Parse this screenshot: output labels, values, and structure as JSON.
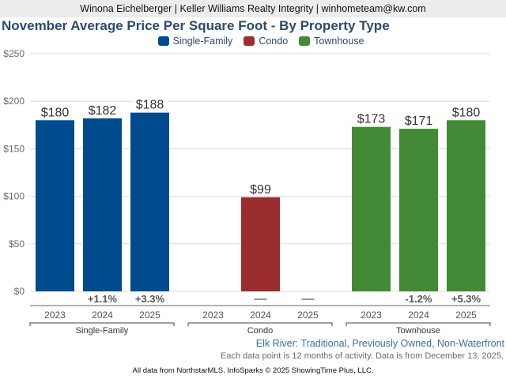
{
  "header": {
    "agent_line": "Winona Eichelberger | Keller Williams Realty Integrity | winhometeam@kw.com"
  },
  "footer": {
    "subtitle": "Elk River: Traditional, Previously Owned, Non-Waterfront",
    "note": "Each data point is 12 months of activity. Data is from December 13, 2025.",
    "source": "All data from NorthstarMLS. InfoSparks © 2025 ShowingTime Plus, LLC."
  },
  "chart_data": {
    "type": "bar",
    "title": "November Average Price Per Square Foot - By Property Type",
    "xlabel": "",
    "ylabel": "",
    "ylim": [
      0,
      250
    ],
    "yticks": [
      0,
      50,
      100,
      150,
      200,
      250
    ],
    "ytick_labels": [
      "$0",
      "$50",
      "$100",
      "$150",
      "$200",
      "$250"
    ],
    "grid": true,
    "legend_position": "top-center",
    "legend": [
      {
        "name": "Single-Family",
        "color": "#004b8d"
      },
      {
        "name": "Condo",
        "color": "#9b2d30"
      },
      {
        "name": "Townhouse",
        "color": "#438a36"
      }
    ],
    "groups": [
      {
        "name": "Single-Family",
        "color": "#004b8d",
        "categories": [
          "2023",
          "2024",
          "2025"
        ],
        "values": [
          180,
          182,
          188
        ],
        "value_labels": [
          "$180",
          "$182",
          "$188"
        ],
        "changes": [
          "",
          "+1.1%",
          "+3.3%"
        ]
      },
      {
        "name": "Condo",
        "color": "#9b2d30",
        "categories": [
          "2023",
          "2024",
          "2025"
        ],
        "values": [
          null,
          99,
          null
        ],
        "value_labels": [
          "",
          "$99",
          ""
        ],
        "changes": [
          "",
          "—",
          "—"
        ]
      },
      {
        "name": "Townhouse",
        "color": "#438a36",
        "categories": [
          "2023",
          "2024",
          "2025"
        ],
        "values": [
          173,
          171,
          180
        ],
        "value_labels": [
          "$173",
          "$171",
          "$180"
        ],
        "changes": [
          "",
          "-1.2%",
          "+5.3%"
        ]
      }
    ]
  }
}
